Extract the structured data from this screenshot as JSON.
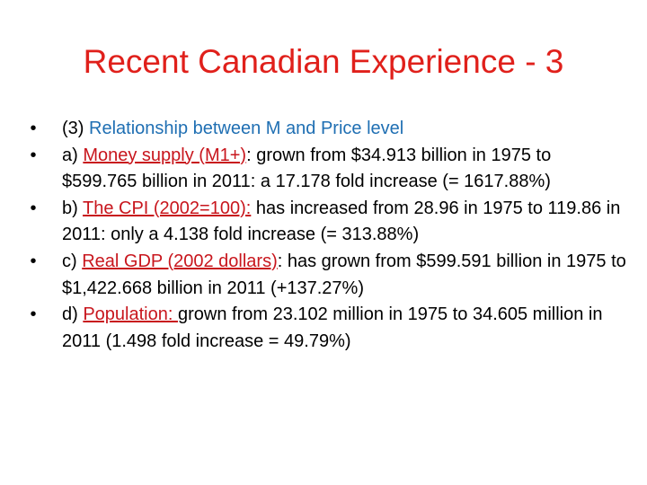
{
  "slide": {
    "title": "Recent Canadian Experience - 3",
    "bullet_glyph": "•",
    "bullets": [
      {
        "prefix": "(3) ",
        "highlight": "Relationship between M and Price level",
        "rest": ""
      },
      {
        "prefix": "a) ",
        "highlight": "Money supply (M1+)",
        "rest": ": grown from $34.913 billion in 1975 to $599.765 billion in 2011: a 17.178 fold increase (= 1617.88%)"
      },
      {
        "prefix": "b) ",
        "highlight": "The CPI (2002=100):",
        "rest": " has increased from 28.96 in 1975 to 119.86 in 2011: only a 4.138 fold increase (= 313.88%)"
      },
      {
        "prefix": "c) ",
        "highlight": "Real GDP (2002 dollars)",
        "rest": ": has grown from $599.591 billion in 1975 to $1,422.668 billion in 2011 (+137.27%)"
      },
      {
        "prefix": "d) ",
        "highlight": "Population: ",
        "rest": " grown from 23.102 million in 1975 to 34.605 million in 2011 (1.498 fold increase = 49.79%)"
      }
    ]
  },
  "colors": {
    "title": "#e0201b",
    "highlight_blue": "#1f6fb3",
    "highlight_red": "#c8161d",
    "body_text": "#000000",
    "background": "#ffffff"
  }
}
